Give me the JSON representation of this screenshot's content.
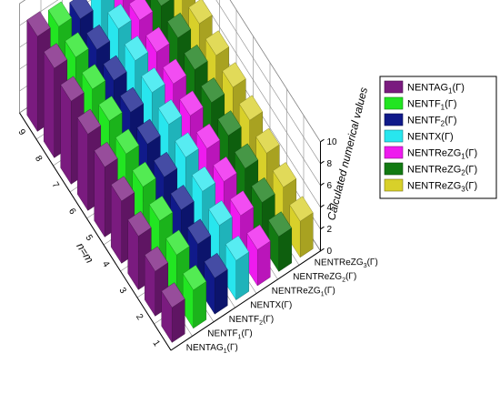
{
  "chart_data": {
    "type": "bar",
    "subtype": "3d-grouped-bar",
    "title": "",
    "xlabel": "n=m",
    "ylabel": "Calculated numerical values",
    "x": [
      1,
      2,
      3,
      4,
      5,
      6,
      7,
      8,
      9
    ],
    "x_tick_labels": [
      "1",
      "2",
      "3",
      "4",
      "5",
      "6",
      "7",
      "8",
      "9"
    ],
    "ylim": [
      0,
      10
    ],
    "yticks": [
      0,
      2,
      4,
      6,
      8,
      10
    ],
    "grid": true,
    "legend_position": "right",
    "series": [
      {
        "key": "ag1",
        "name": "NENTAG₁(Γ)",
        "name_base": "NENTAG",
        "name_sub": "1",
        "name_tail": "(Γ)",
        "color": "#7a1b7f",
        "values": [
          3.2,
          4.1,
          4.9,
          5.7,
          6.4,
          7.0,
          7.6,
          8.2,
          8.7
        ]
      },
      {
        "key": "f1",
        "name": "NENTF₁(Γ)",
        "name_base": "NENTF",
        "name_sub": "1",
        "name_tail": "(Γ)",
        "color": "#22e522",
        "values": [
          3.5,
          4.3,
          5.0,
          5.7,
          6.3,
          6.9,
          7.4,
          7.9,
          8.3
        ]
      },
      {
        "key": "f2",
        "name": "NENTF₂(Γ)",
        "name_base": "NENTF",
        "name_sub": "2",
        "name_tail": "(Γ)",
        "color": "#101a8a",
        "values": [
          3.3,
          4.0,
          4.7,
          5.3,
          5.9,
          6.4,
          6.9,
          7.3,
          7.7
        ]
      },
      {
        "key": "x",
        "name": "NENTX(Γ)",
        "name_base": "NENTX",
        "name_sub": "",
        "name_tail": "(Γ)",
        "color": "#28e6ee",
        "values": [
          3.6,
          4.4,
          5.1,
          5.8,
          6.4,
          6.9,
          7.4,
          7.9,
          8.3
        ]
      },
      {
        "key": "rez1",
        "name": "NENTReZG₁(Γ)",
        "name_base": "NENTReZG",
        "name_sub": "1",
        "name_tail": "(Γ)",
        "color": "#ee1bee",
        "values": [
          3.3,
          4.0,
          4.7,
          5.3,
          5.9,
          6.4,
          6.9,
          7.4,
          7.8
        ]
      },
      {
        "key": "rez2",
        "name": "NENTReZG₂(Γ)",
        "name_base": "NENTReZG",
        "name_sub": "2",
        "name_tail": "(Γ)",
        "color": "#127a12",
        "values": [
          3.2,
          3.9,
          4.6,
          5.2,
          5.8,
          6.4,
          6.9,
          7.4,
          7.8
        ]
      },
      {
        "key": "rez3",
        "name": "NENTReZG₃(Γ)",
        "name_base": "NENTReZG",
        "name_sub": "3",
        "name_tail": "(Γ)",
        "color": "#d8d02a",
        "values": [
          3.3,
          4.0,
          4.7,
          5.3,
          5.9,
          6.4,
          6.9,
          7.4,
          7.9
        ]
      }
    ]
  }
}
